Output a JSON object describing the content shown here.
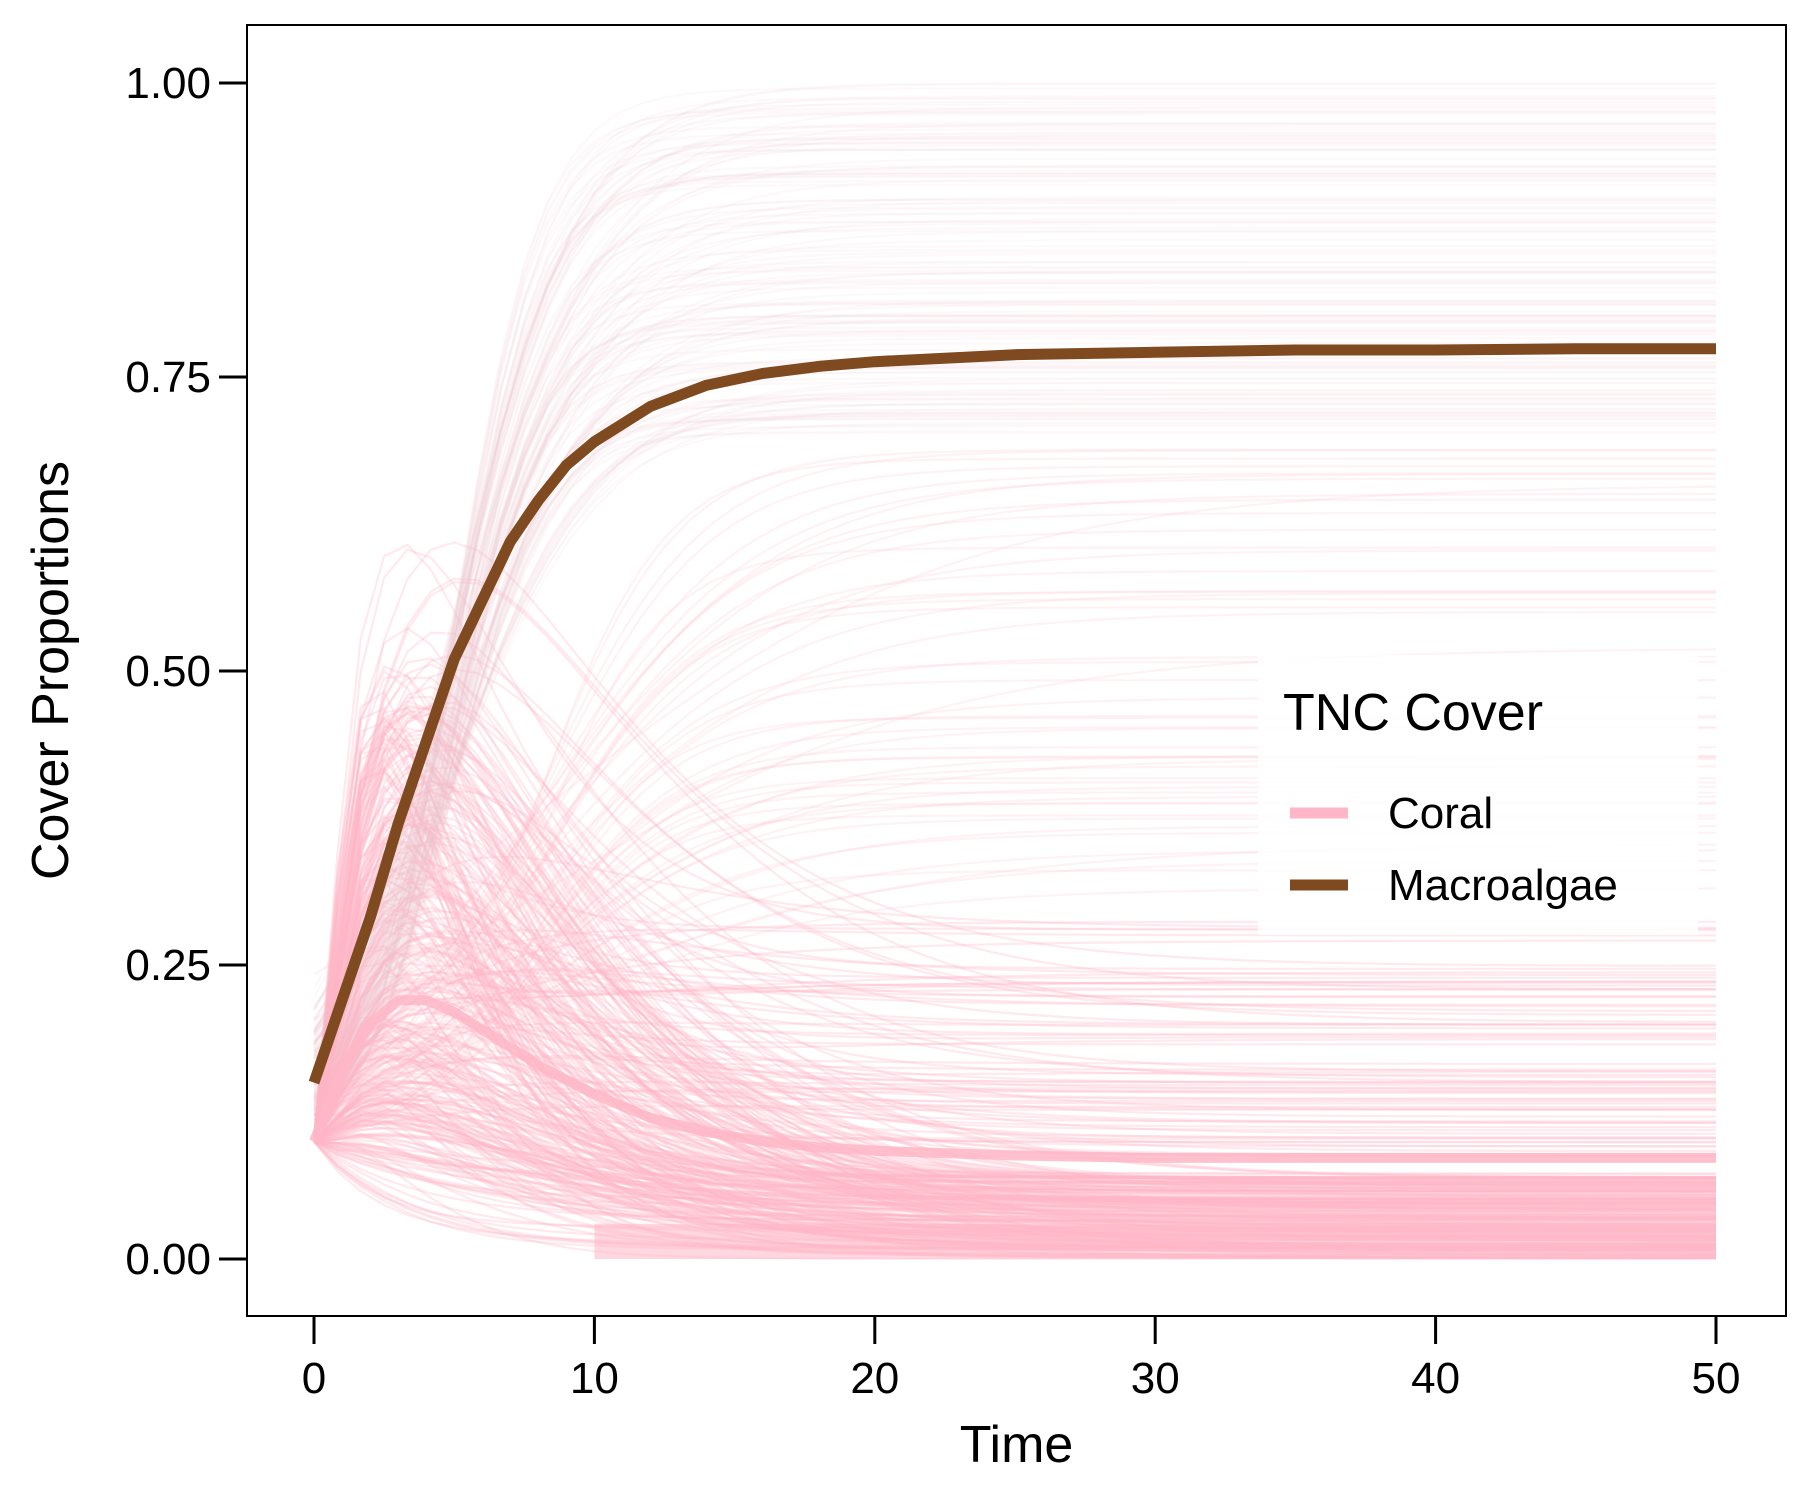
{
  "chart_data": {
    "type": "line",
    "title": "",
    "xlabel": "Time",
    "ylabel": "Cover Proportions",
    "xlim": [
      -2.4,
      52.4
    ],
    "ylim": [
      -0.05,
      1.05
    ],
    "x_ticks": [
      0,
      10,
      20,
      30,
      40,
      50
    ],
    "x_tick_labels": [
      "0",
      "10",
      "20",
      "30",
      "40",
      "50"
    ],
    "y_ticks": [
      0,
      0.25,
      0.5,
      0.75,
      1.0
    ],
    "y_tick_labels": [
      "0.00",
      "0.25",
      "0.50",
      "0.75",
      "1.00"
    ],
    "grid": false,
    "legend": {
      "title": "TNC Cover",
      "placement": "right, centered vertically",
      "entries": [
        {
          "label": "Coral",
          "color": "#FFB6C6"
        },
        {
          "label": "Macroalgae",
          "color": "#7F4A1F"
        }
      ]
    },
    "series": [
      {
        "name": "Macroalgae",
        "color": "#7F4A1F",
        "x": [
          0,
          1,
          2,
          3,
          4,
          5,
          6,
          7,
          8,
          9,
          10,
          12,
          14,
          16,
          18,
          20,
          25,
          30,
          35,
          40,
          45,
          50
        ],
        "values": [
          0.15,
          0.22,
          0.29,
          0.37,
          0.44,
          0.51,
          0.56,
          0.61,
          0.645,
          0.675,
          0.695,
          0.725,
          0.743,
          0.753,
          0.759,
          0.763,
          0.769,
          0.771,
          0.773,
          0.773,
          0.774,
          0.774
        ]
      },
      {
        "name": "Coral",
        "color": "#FFB6C6",
        "x": [
          0,
          1,
          2,
          3,
          4,
          5,
          6,
          8,
          10,
          12,
          14,
          16,
          18,
          20,
          25,
          30,
          35,
          40,
          45,
          50
        ],
        "values": [
          0.1,
          0.16,
          0.2,
          0.22,
          0.22,
          0.21,
          0.195,
          0.165,
          0.14,
          0.12,
          0.108,
          0.1,
          0.095,
          0.092,
          0.088,
          0.086,
          0.086,
          0.086,
          0.086,
          0.086
        ]
      }
    ],
    "ensemble_note": {
      "coral_trajectory_count_shown": "many",
      "start_value": 0.1,
      "end_range": [
        0.0,
        1.0
      ]
    }
  }
}
